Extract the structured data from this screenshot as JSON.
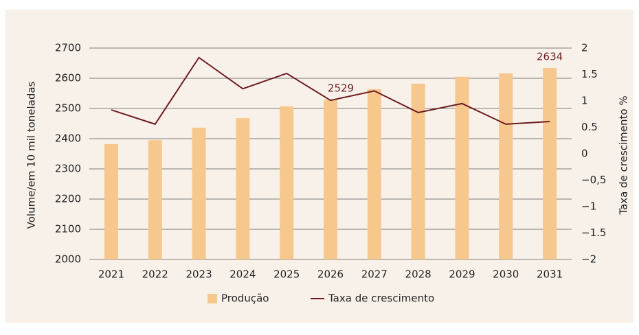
{
  "chart_data": {
    "type": "bar_line",
    "y_label": "Volume/em 10 mil toneladas",
    "y2_label": "Taxa de crescimento %",
    "categories": [
      "2021",
      "2022",
      "2023",
      "2024",
      "2025",
      "2026",
      "2027",
      "2028",
      "2029",
      "2030",
      "2031"
    ],
    "series": [
      {
        "name": "Produção",
        "type": "bar",
        "color": "#f6c88e",
        "values": [
          2382,
          2395,
          2436,
          2468,
          2507,
          2529,
          2564,
          2582,
          2605,
          2616,
          2634
        ],
        "value_labels": [
          null,
          null,
          null,
          null,
          null,
          "2529",
          null,
          null,
          null,
          null,
          "2634"
        ]
      },
      {
        "name": "Taxa de crescimento",
        "type": "line",
        "axis": "y2",
        "color": "#6e1c1f",
        "values": [
          0.83,
          0.56,
          1.82,
          1.23,
          1.52,
          1.01,
          1.19,
          0.78,
          0.95,
          0.56,
          0.61
        ]
      }
    ],
    "ylim": [
      2000,
      2700
    ],
    "yticks": [
      2000,
      2100,
      2200,
      2300,
      2400,
      2500,
      2600,
      2700
    ],
    "y2lim": [
      -2,
      2
    ],
    "y2ticks": [
      {
        "value": -2,
        "label": "−2"
      },
      {
        "value": -1.5,
        "label": "−1.5"
      },
      {
        "value": -1,
        "label": "−1"
      },
      {
        "value": -0.5,
        "label": "−0,5"
      },
      0,
      0.5,
      1,
      1.5,
      2
    ],
    "grid": true,
    "legend": "bottom"
  }
}
